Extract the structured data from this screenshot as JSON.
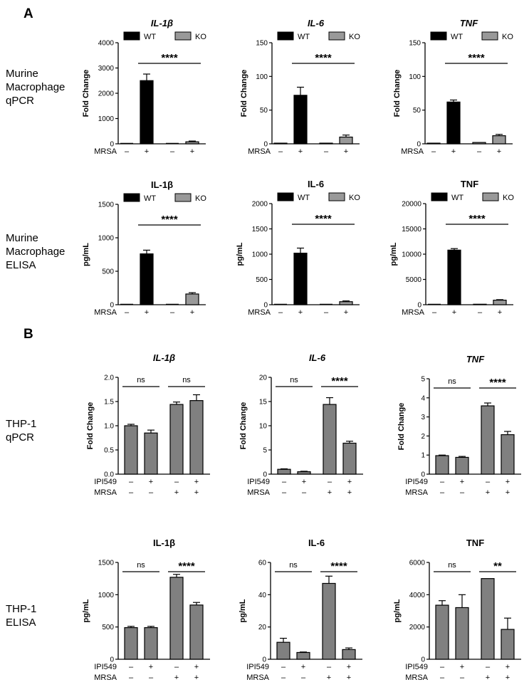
{
  "panels": [
    {
      "letter": "A"
    },
    {
      "letter": "B"
    }
  ],
  "rows": [
    {
      "label": [
        "Murine",
        "Macrophage",
        "qPCR"
      ]
    },
    {
      "label": [
        "Murine",
        "Macrophage",
        "ELISA"
      ]
    },
    {
      "label": [
        "THP-1",
        "qPCR"
      ]
    },
    {
      "label": [
        "THP-1",
        "ELISA"
      ]
    }
  ],
  "colors": {
    "wt": "#000000",
    "ko": "#999999",
    "thp": "#808080",
    "edge": "#000000"
  },
  "chart_data": [
    {
      "type": "bar",
      "title": "IL-1β",
      "title_italic": true,
      "ylabel": "Fold Change",
      "ylim": [
        0,
        4000
      ],
      "yticks": [
        "0",
        "1000",
        "2000",
        "3000",
        "4000"
      ],
      "legend": [
        "WT",
        "KO"
      ],
      "conditions": [
        {
          "name": "MRSA",
          "marks": [
            "–",
            "+",
            "–",
            "+"
          ]
        }
      ],
      "groups": [
        "WT",
        "WT",
        "KO",
        "KO"
      ],
      "values": [
        0,
        2500,
        0,
        80
      ],
      "errors": [
        0,
        260,
        0,
        30
      ],
      "significance": [
        {
          "from": 1,
          "to": 3,
          "label": "****"
        }
      ]
    },
    {
      "type": "bar",
      "title": "IL-6",
      "title_italic": true,
      "ylabel": "Fold Change",
      "ylim": [
        0,
        150
      ],
      "yticks": [
        "0",
        "50",
        "100",
        "150"
      ],
      "legend": [
        "WT",
        "KO"
      ],
      "conditions": [
        {
          "name": "MRSA",
          "marks": [
            "–",
            "+",
            "–",
            "+"
          ]
        }
      ],
      "groups": [
        "WT",
        "WT",
        "KO",
        "KO"
      ],
      "values": [
        1,
        72,
        1,
        10
      ],
      "errors": [
        0,
        12,
        0,
        3
      ],
      "significance": [
        {
          "from": 1,
          "to": 3,
          "label": "****"
        }
      ]
    },
    {
      "type": "bar",
      "title": "TNF",
      "title_italic": true,
      "ylabel": "Fold Change",
      "ylim": [
        0,
        150
      ],
      "yticks": [
        "0",
        "50",
        "100",
        "150"
      ],
      "legend": [
        "WT",
        "KO"
      ],
      "conditions": [
        {
          "name": "MRSA",
          "marks": [
            "–",
            "+",
            "–",
            "+"
          ]
        }
      ],
      "groups": [
        "WT",
        "WT",
        "KO",
        "KO"
      ],
      "values": [
        1,
        62,
        2,
        12
      ],
      "errors": [
        0,
        3,
        0,
        2
      ],
      "significance": [
        {
          "from": 1,
          "to": 3,
          "label": "****"
        }
      ]
    },
    {
      "type": "bar",
      "title": "IL-1β",
      "title_italic": false,
      "ylabel": "pg/mL",
      "ylim": [
        0,
        1500
      ],
      "yticks": [
        "0",
        "500",
        "1000",
        "1500"
      ],
      "legend": [
        "WT",
        "KO"
      ],
      "conditions": [
        {
          "name": "MRSA",
          "marks": [
            "–",
            "+",
            "–",
            "+"
          ]
        }
      ],
      "groups": [
        "WT",
        "WT",
        "KO",
        "KO"
      ],
      "values": [
        5,
        760,
        0,
        160
      ],
      "errors": [
        0,
        55,
        0,
        20
      ],
      "significance": [
        {
          "from": 1,
          "to": 3,
          "label": "****"
        }
      ]
    },
    {
      "type": "bar",
      "title": "IL-6",
      "title_italic": false,
      "ylabel": "pg/mL",
      "ylim": [
        0,
        2000
      ],
      "yticks": [
        "0",
        "500",
        "1000",
        "1500",
        "2000"
      ],
      "legend": [
        "WT",
        "KO"
      ],
      "conditions": [
        {
          "name": "MRSA",
          "marks": [
            "–",
            "+",
            "–",
            "+"
          ]
        }
      ],
      "groups": [
        "WT",
        "WT",
        "KO",
        "KO"
      ],
      "values": [
        0,
        1020,
        0,
        60
      ],
      "errors": [
        0,
        100,
        0,
        15
      ],
      "significance": [
        {
          "from": 1,
          "to": 3,
          "label": "****"
        }
      ]
    },
    {
      "type": "bar",
      "title": "TNF",
      "title_italic": false,
      "ylabel": "pg/mL",
      "ylim": [
        0,
        20000
      ],
      "yticks": [
        "0",
        "5000",
        "10000",
        "15000",
        "20000"
      ],
      "legend": [
        "WT",
        "KO"
      ],
      "conditions": [
        {
          "name": "MRSA",
          "marks": [
            "–",
            "+",
            "–",
            "+"
          ]
        }
      ],
      "groups": [
        "WT",
        "WT",
        "KO",
        "KO"
      ],
      "values": [
        0,
        10800,
        100,
        900
      ],
      "errors": [
        0,
        300,
        0,
        100
      ],
      "significance": [
        {
          "from": 1,
          "to": 3,
          "label": "****"
        }
      ]
    },
    {
      "type": "bar",
      "title": "IL-1β",
      "title_italic": true,
      "ylabel": "Fold Change",
      "ylim": [
        0,
        2.0
      ],
      "yticks": [
        "0.0",
        "0.5",
        "1.0",
        "1.5",
        "2.0"
      ],
      "legend": [],
      "conditions": [
        {
          "name": "IPI549",
          "marks": [
            "–",
            "+",
            "–",
            "+"
          ]
        },
        {
          "name": "MRSA",
          "marks": [
            "–",
            "–",
            "+",
            "+"
          ]
        }
      ],
      "groups": [
        "THP",
        "THP",
        "THP",
        "THP"
      ],
      "values": [
        1.0,
        0.85,
        1.44,
        1.52
      ],
      "errors": [
        0.03,
        0.06,
        0.05,
        0.12
      ],
      "significance": [
        {
          "from": 0,
          "to": 1,
          "label": "ns"
        },
        {
          "from": 2,
          "to": 3,
          "label": "ns"
        }
      ]
    },
    {
      "type": "bar",
      "title": "IL-6",
      "title_italic": true,
      "ylabel": "Fold Change",
      "ylim": [
        0,
        20
      ],
      "yticks": [
        "0",
        "5",
        "10",
        "15",
        "20"
      ],
      "legend": [],
      "conditions": [
        {
          "name": "IPI549",
          "marks": [
            "–",
            "+",
            "–",
            "+"
          ]
        },
        {
          "name": "MRSA",
          "marks": [
            "–",
            "–",
            "+",
            "+"
          ]
        }
      ],
      "groups": [
        "THP",
        "THP",
        "THP",
        "THP"
      ],
      "values": [
        1.0,
        0.5,
        14.4,
        6.4
      ],
      "errors": [
        0.1,
        0.1,
        1.4,
        0.4
      ],
      "significance": [
        {
          "from": 0,
          "to": 1,
          "label": "ns"
        },
        {
          "from": 2,
          "to": 3,
          "label": "****"
        }
      ]
    },
    {
      "type": "bar",
      "title": "TNF",
      "title_italic": true,
      "ylabel": "Fold Change",
      "ylim": [
        0,
        5
      ],
      "yticks": [
        "0",
        "1",
        "2",
        "3",
        "4",
        "5"
      ],
      "legend": [],
      "conditions": [
        {
          "name": "IPI549",
          "marks": [
            "–",
            "+",
            "–",
            "+"
          ]
        },
        {
          "name": "MRSA",
          "marks": [
            "–",
            "–",
            "+",
            "+"
          ]
        }
      ],
      "groups": [
        "THP",
        "THP",
        "THP",
        "THP"
      ],
      "values": [
        0.97,
        0.88,
        3.58,
        2.07
      ],
      "errors": [
        0.03,
        0.05,
        0.15,
        0.17
      ],
      "significance": [
        {
          "from": 0,
          "to": 1,
          "label": "ns"
        },
        {
          "from": 2,
          "to": 3,
          "label": "****"
        }
      ]
    },
    {
      "type": "bar",
      "title": "IL-1β",
      "title_italic": false,
      "ylabel": "pg/mL",
      "ylim": [
        0,
        1500
      ],
      "yticks": [
        "0",
        "500",
        "1000",
        "1500"
      ],
      "legend": [],
      "conditions": [
        {
          "name": "IPI549",
          "marks": [
            "–",
            "+",
            "–",
            "+"
          ]
        },
        {
          "name": "MRSA",
          "marks": [
            "–",
            "–",
            "+",
            "+"
          ]
        }
      ],
      "groups": [
        "THP",
        "THP",
        "THP",
        "THP"
      ],
      "values": [
        490,
        490,
        1270,
        840
      ],
      "errors": [
        20,
        20,
        45,
        40
      ],
      "significance": [
        {
          "from": 0,
          "to": 1,
          "label": "ns"
        },
        {
          "from": 2,
          "to": 3,
          "label": "****"
        }
      ]
    },
    {
      "type": "bar",
      "title": "IL-6",
      "title_italic": false,
      "ylabel": "pg/mL",
      "ylim": [
        0,
        60
      ],
      "yticks": [
        "0",
        "20",
        "40",
        "60"
      ],
      "legend": [],
      "conditions": [
        {
          "name": "IPI549",
          "marks": [
            "–",
            "+",
            "–",
            "+"
          ]
        },
        {
          "name": "MRSA",
          "marks": [
            "–",
            "–",
            "+",
            "+"
          ]
        }
      ],
      "groups": [
        "THP",
        "THP",
        "THP",
        "THP"
      ],
      "values": [
        10.5,
        4.2,
        47,
        6
      ],
      "errors": [
        2.5,
        0.3,
        4.5,
        1
      ],
      "significance": [
        {
          "from": 0,
          "to": 1,
          "label": "ns"
        },
        {
          "from": 2,
          "to": 3,
          "label": "****"
        }
      ]
    },
    {
      "type": "bar",
      "title": "TNF",
      "title_italic": false,
      "ylabel": "pg/mL",
      "ylim": [
        0,
        6000
      ],
      "yticks": [
        "0",
        "2000",
        "4000",
        "6000"
      ],
      "legend": [],
      "conditions": [
        {
          "name": "IPI549",
          "marks": [
            "–",
            "+",
            "–",
            "+"
          ]
        },
        {
          "name": "MRSA",
          "marks": [
            "–",
            "–",
            "+",
            "+"
          ]
        }
      ],
      "groups": [
        "THP",
        "THP",
        "THP",
        "THP"
      ],
      "values": [
        3350,
        3200,
        5000,
        1850
      ],
      "errors": [
        280,
        800,
        0,
        700
      ],
      "significance": [
        {
          "from": 0,
          "to": 1,
          "label": "ns"
        },
        {
          "from": 2,
          "to": 3,
          "label": "**"
        }
      ]
    }
  ]
}
